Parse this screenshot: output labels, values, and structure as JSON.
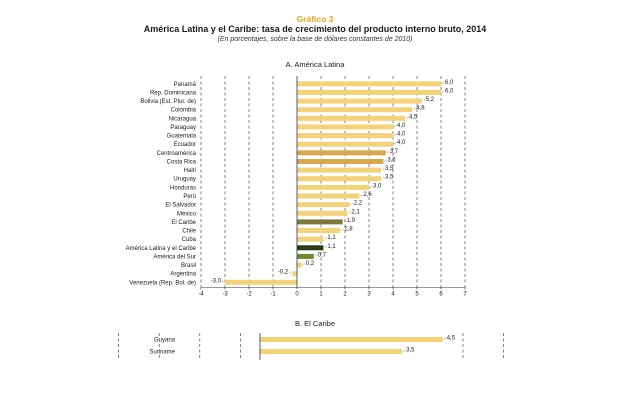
{
  "header": {
    "label": "Gráfico 3",
    "title": "América Latina y el Caribe: tasa de crecimiento del producto interno bruto, 2014",
    "subtitle": "(En porcentajes, sobre la base de dólares constantes de 2010)"
  },
  "colors": {
    "bar": "#f3d27a",
    "bar_subregion": "#d8a74a",
    "bar_caribe": "#7b7a3a",
    "bar_total": "#2d3b14",
    "bar_sur": "#6f8a30",
    "axis": "#333333",
    "grid": "#333333"
  },
  "chart_data": [
    {
      "type": "bar",
      "orientation": "horizontal",
      "title": "A. América Latina",
      "categories": [
        "Panamá",
        "Rep. Dominicana",
        "Bolivia (Est. Plur. de)",
        "Colombia",
        "Nicaragua",
        "Paraguay",
        "Guatemala",
        "Ecuador",
        "Centroamérica",
        "Costa Rica",
        "Haití",
        "Uruguay",
        "Honduras",
        "Perú",
        "El Salvador",
        "México",
        "El Caribe",
        "Chile",
        "Cuba",
        "América Latina y el Caribe",
        "América del Sur",
        "Brasil",
        "Argentina",
        "Venezuela (Rep. Bol. de)"
      ],
      "values": [
        6.0,
        6.0,
        5.2,
        4.8,
        4.5,
        4.0,
        4.0,
        4.0,
        3.7,
        3.6,
        3.5,
        3.5,
        3.0,
        2.6,
        2.2,
        2.1,
        1.9,
        1.8,
        1.1,
        1.1,
        0.7,
        0.2,
        -0.2,
        -3.0
      ],
      "value_labels": [
        "6,0",
        "6,0",
        "5,2",
        "4,8",
        "4,5",
        "4,0",
        "4,0",
        "4,0",
        "3,7",
        "3,6",
        "3,5",
        "3,5",
        "3,0",
        "2,6",
        "2,2",
        "2,1",
        "1,9",
        "1,8",
        "1,1",
        "1,1",
        "0,7",
        "0,2",
        "-0,2",
        "-3,0"
      ],
      "highlight": [
        "",
        "",
        "",
        "",
        "",
        "",
        "",
        "",
        "subregion",
        "subregion",
        "",
        "",
        "",
        "",
        "",
        "",
        "caribe",
        "",
        "",
        "total",
        "sur",
        "",
        "",
        ""
      ],
      "xlim": [
        -4,
        7
      ],
      "xticks": [
        -4,
        -3,
        -2,
        -1,
        0,
        1,
        2,
        3,
        4,
        5,
        6,
        7
      ],
      "grid": true
    },
    {
      "type": "bar",
      "orientation": "horizontal",
      "title": "B. El Caribe",
      "categories": [
        "Guyana",
        "Suriname"
      ],
      "values": [
        4.5,
        3.5
      ],
      "value_labels": [
        "4,5",
        "3,5"
      ],
      "xlim": [
        -4,
        7
      ],
      "grid": true
    }
  ]
}
